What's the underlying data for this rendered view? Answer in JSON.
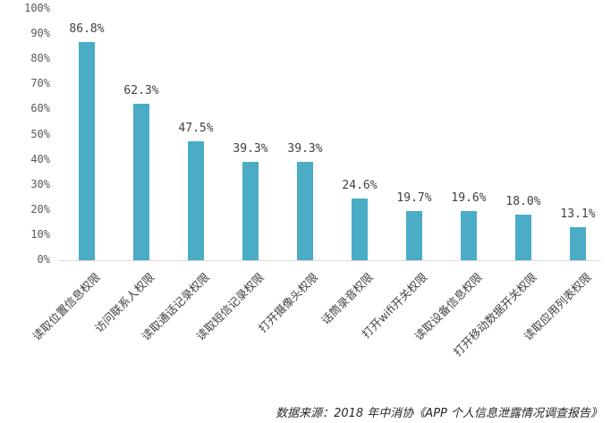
{
  "chart_data": {
    "type": "bar",
    "title": "",
    "xlabel": "",
    "ylabel": "",
    "ylim": [
      0,
      100
    ],
    "yticks": [
      "0%",
      "10%",
      "20%",
      "30%",
      "40%",
      "50%",
      "60%",
      "70%",
      "80%",
      "90%",
      "100%"
    ],
    "grid": false,
    "legend": null,
    "bar_color": "#4bacc6",
    "categories": [
      "读取位置信息权限",
      "访问联系人权限",
      "读取通话记录权限",
      "读取短信记录权限",
      "打开摄像头权限",
      "话筒录音权限",
      "打开wifi开关权限",
      "读取设备信息权限",
      "打开移动数据开关权限",
      "读取应用列表权限"
    ],
    "values": [
      86.8,
      62.3,
      47.5,
      39.3,
      39.3,
      24.6,
      19.7,
      19.6,
      18.0,
      13.1
    ],
    "value_labels": [
      "86.8%",
      "62.3%",
      "47.5%",
      "39.3%",
      "39.3%",
      "24.6%",
      "19.7%",
      "19.6%",
      "18.0%",
      "13.1%"
    ],
    "source": "数据来源：2018 年中消协《APP 个人信息泄露情况调查报告》"
  }
}
